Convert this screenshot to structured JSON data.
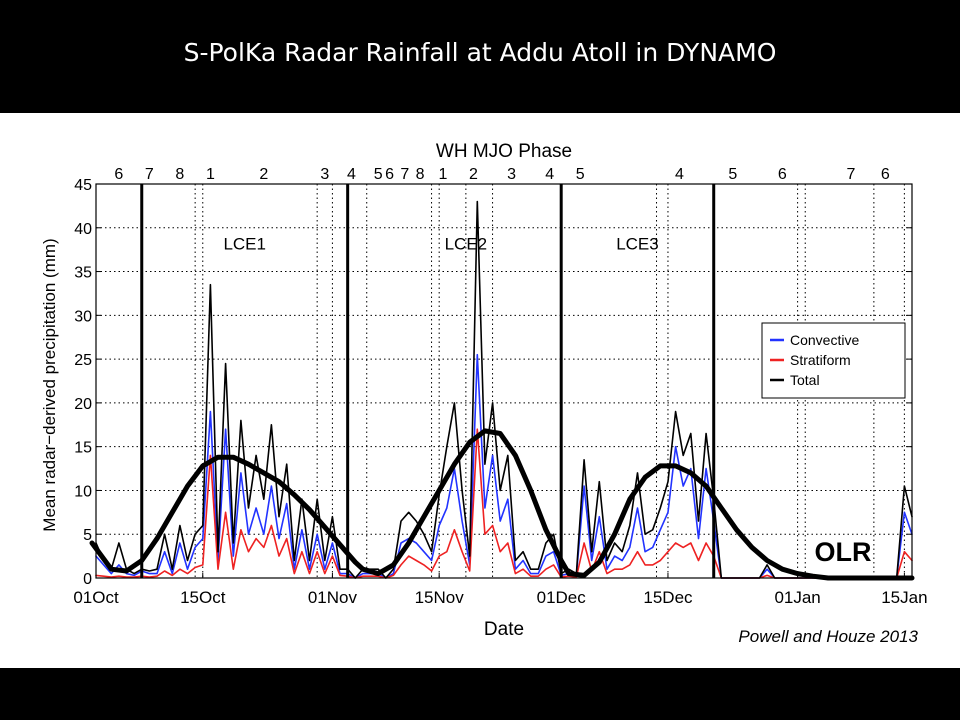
{
  "title": "S-PolKa Radar Rainfall at Addu Atoll in DYNAMO",
  "citation": "Powell and Houze 2013",
  "chart_data": {
    "type": "line",
    "top_axis_label": "WH MJO Phase",
    "xlabel": "Date",
    "ylabel": "Mean radar−derived precipitation (mm)",
    "x_unit": "days since 01Oct",
    "xlim": [
      0,
      107
    ],
    "ylim": [
      0,
      45
    ],
    "yticks": [
      0,
      5,
      10,
      15,
      20,
      25,
      30,
      35,
      40,
      45
    ],
    "xticks": [
      {
        "x": 0,
        "label": "01Oct"
      },
      {
        "x": 14,
        "label": "15Oct"
      },
      {
        "x": 31,
        "label": "01Nov"
      },
      {
        "x": 45,
        "label": "15Nov"
      },
      {
        "x": 61,
        "label": "01Dec"
      },
      {
        "x": 75,
        "label": "15Dec"
      },
      {
        "x": 92,
        "label": "01Jan"
      },
      {
        "x": 106,
        "label": "15Jan"
      }
    ],
    "mjo_phase_labels": [
      {
        "x": 3,
        "label": "6"
      },
      {
        "x": 7,
        "label": "7"
      },
      {
        "x": 11,
        "label": "8"
      },
      {
        "x": 15,
        "label": "1"
      },
      {
        "x": 22,
        "label": "2"
      },
      {
        "x": 30,
        "label": "3"
      },
      {
        "x": 33.5,
        "label": "4"
      },
      {
        "x": 37,
        "label": "5"
      },
      {
        "x": 38.5,
        "label": "6"
      },
      {
        "x": 40.5,
        "label": "7"
      },
      {
        "x": 42.5,
        "label": "8"
      },
      {
        "x": 45.5,
        "label": "1"
      },
      {
        "x": 49.5,
        "label": "2"
      },
      {
        "x": 54.5,
        "label": "3"
      },
      {
        "x": 59.5,
        "label": "4"
      },
      {
        "x": 63.5,
        "label": "5"
      },
      {
        "x": 76.5,
        "label": "4"
      },
      {
        "x": 83.5,
        "label": "5"
      },
      {
        "x": 90,
        "label": "6"
      },
      {
        "x": 99,
        "label": "7"
      },
      {
        "x": 103.5,
        "label": "6"
      }
    ],
    "lce_boundaries": [
      6,
      33,
      61,
      81
    ],
    "phase_boundaries_dotted": [
      13,
      29,
      35.5,
      44,
      48.5,
      52,
      73.5,
      93,
      102
    ],
    "lce_labels": [
      {
        "x": 19.5,
        "y": 37.5,
        "label": "LCE1"
      },
      {
        "x": 48.5,
        "y": 37.5,
        "label": "LCE2"
      },
      {
        "x": 71,
        "y": 37.5,
        "label": "LCE3"
      }
    ],
    "legend": [
      "Convective",
      "Stratiform",
      "Total"
    ],
    "legend_position": "right",
    "series": [
      {
        "name": "Convective",
        "color": "#2233ff",
        "x": [
          0,
          1,
          2,
          3,
          4,
          5,
          6,
          7,
          8,
          9,
          10,
          11,
          12,
          13,
          14,
          15,
          16,
          17,
          18,
          19,
          20,
          21,
          22,
          23,
          24,
          25,
          26,
          27,
          28,
          29,
          30,
          31,
          32,
          33,
          34,
          35,
          36,
          37,
          38,
          39,
          40,
          41,
          42,
          43,
          44,
          45,
          46,
          47,
          48,
          49,
          50,
          51,
          52,
          53,
          54,
          55,
          56,
          57,
          58,
          59,
          60,
          61,
          62,
          63,
          64,
          65,
          66,
          67,
          68,
          69,
          70,
          71,
          72,
          73,
          74,
          75,
          76,
          77,
          78,
          79,
          80,
          81,
          82,
          83,
          84,
          85,
          86,
          87,
          88,
          89,
          90,
          91,
          92,
          93,
          94,
          95,
          96,
          97,
          98,
          99,
          100,
          101,
          102,
          103,
          104,
          105,
          106,
          107
        ],
        "y": [
          2.5,
          1.5,
          0.5,
          1.5,
          0.5,
          0.3,
          0.8,
          0.5,
          0.5,
          3,
          0.5,
          4,
          1,
          3.5,
          4.5,
          19,
          2,
          17,
          2.5,
          12,
          5,
          8,
          5,
          10.5,
          4.5,
          8.5,
          1,
          5.5,
          1,
          5,
          1,
          4,
          0.5,
          0.5,
          0,
          0.5,
          0.5,
          0.5,
          0,
          0.5,
          4,
          4.5,
          4,
          3,
          2,
          6,
          8,
          12.5,
          6.5,
          1.5,
          25.5,
          8,
          14,
          6.5,
          9,
          1,
          2,
          0.5,
          0.5,
          2.5,
          3,
          0.3,
          0.5,
          0.3,
          10.5,
          2,
          7,
          1,
          2.5,
          2,
          3.5,
          8,
          3,
          3.5,
          5.5,
          7.5,
          15,
          10.5,
          12.5,
          4.5,
          12.5,
          6.5,
          0,
          0,
          0,
          0,
          0,
          0,
          1,
          0,
          0,
          0,
          0,
          0,
          0,
          0,
          0,
          0,
          0,
          0,
          0,
          0,
          0,
          0,
          0,
          0,
          7.5,
          5
        ]
      },
      {
        "name": "Stratiform",
        "color": "#ee2222",
        "x": [
          0,
          1,
          2,
          3,
          4,
          5,
          6,
          7,
          8,
          9,
          10,
          11,
          12,
          13,
          14,
          15,
          16,
          17,
          18,
          19,
          20,
          21,
          22,
          23,
          24,
          25,
          26,
          27,
          28,
          29,
          30,
          31,
          32,
          33,
          34,
          35,
          36,
          37,
          38,
          39,
          40,
          41,
          42,
          43,
          44,
          45,
          46,
          47,
          48,
          49,
          50,
          51,
          52,
          53,
          54,
          55,
          56,
          57,
          58,
          59,
          60,
          61,
          62,
          63,
          64,
          65,
          66,
          67,
          68,
          69,
          70,
          71,
          72,
          73,
          74,
          75,
          76,
          77,
          78,
          79,
          80,
          81,
          82,
          83,
          84,
          85,
          86,
          87,
          88,
          89,
          90,
          91,
          92,
          93,
          94,
          95,
          96,
          97,
          98,
          99,
          100,
          101,
          102,
          103,
          104,
          105,
          106,
          107
        ],
        "y": [
          0.3,
          0.2,
          0.1,
          0.2,
          0.1,
          0.1,
          0.2,
          0.1,
          0.2,
          0.8,
          0.3,
          1,
          0.5,
          1.2,
          1.5,
          14,
          1,
          7.5,
          1,
          5.5,
          3,
          4.5,
          3.5,
          6,
          2.5,
          4.5,
          0.5,
          3,
          0.5,
          3,
          0.5,
          2.5,
          0.3,
          0.2,
          0,
          0.2,
          0.2,
          0.2,
          0,
          0.3,
          1.5,
          2.5,
          2,
          1.5,
          0.8,
          2.5,
          3,
          5.5,
          3,
          0.8,
          17,
          5,
          6,
          3,
          4,
          0.5,
          1,
          0.2,
          0.2,
          1,
          1.5,
          0.1,
          0.2,
          0.1,
          4,
          0.8,
          3,
          0.5,
          1,
          1,
          1.5,
          3,
          1.5,
          1.5,
          2,
          3,
          4,
          3.5,
          4,
          2,
          4,
          2.5,
          0,
          0,
          0,
          0,
          0,
          0,
          0.3,
          0,
          0,
          0,
          0,
          0,
          0,
          0,
          0,
          0,
          0,
          0,
          0,
          0,
          0,
          0,
          0,
          0,
          3,
          2
        ]
      },
      {
        "name": "Total",
        "color": "#000000",
        "x": [
          0,
          1,
          2,
          3,
          4,
          5,
          6,
          7,
          8,
          9,
          10,
          11,
          12,
          13,
          14,
          15,
          16,
          17,
          18,
          19,
          20,
          21,
          22,
          23,
          24,
          25,
          26,
          27,
          28,
          29,
          30,
          31,
          32,
          33,
          34,
          35,
          36,
          37,
          38,
          39,
          40,
          41,
          42,
          43,
          44,
          45,
          46,
          47,
          48,
          49,
          50,
          51,
          52,
          53,
          54,
          55,
          56,
          57,
          58,
          59,
          60,
          61,
          62,
          63,
          64,
          65,
          66,
          67,
          68,
          69,
          70,
          71,
          72,
          73,
          74,
          75,
          76,
          77,
          78,
          79,
          80,
          81,
          82,
          83,
          84,
          85,
          86,
          87,
          88,
          89,
          90,
          91,
          92,
          93,
          94,
          95,
          96,
          97,
          98,
          99,
          100,
          101,
          102,
          103,
          104,
          105,
          106,
          107
        ],
        "y": [
          4,
          2,
          1,
          4,
          1,
          0.5,
          1,
          0.8,
          1,
          5,
          1,
          6,
          2,
          5,
          6,
          33.5,
          3,
          24.5,
          4,
          18,
          8,
          14,
          9,
          17.5,
          7,
          13,
          2,
          9,
          2,
          9,
          2,
          7,
          1,
          1,
          0,
          1,
          1,
          1,
          0,
          1,
          6.5,
          7.5,
          6.5,
          5,
          3,
          9.5,
          15,
          20,
          10,
          2.5,
          43,
          13,
          20,
          10,
          14,
          2,
          3,
          1,
          1,
          4,
          5,
          0.5,
          1,
          0.5,
          13.5,
          3,
          11,
          2,
          4,
          3,
          6,
          12,
          5,
          5.5,
          8,
          11,
          19,
          14,
          16.5,
          6.5,
          16.5,
          9,
          0,
          0,
          0,
          0,
          0,
          0,
          1.5,
          0,
          0,
          0,
          0,
          0,
          0,
          0,
          0,
          0,
          0,
          0,
          0,
          0,
          0,
          0,
          0,
          0,
          10.5,
          7
        ]
      },
      {
        "name": "OLR",
        "color": "#000000",
        "x": [
          -1,
          2,
          4,
          6,
          8,
          10,
          12,
          14,
          16,
          18,
          20,
          22,
          24,
          26,
          28,
          30,
          32,
          34,
          35,
          37,
          39,
          41,
          43,
          45,
          47,
          49,
          51,
          53,
          55,
          57,
          59,
          61,
          62,
          64,
          66,
          68,
          70,
          72,
          74,
          76,
          78,
          80,
          82,
          84,
          86,
          88,
          90,
          92,
          94,
          96,
          98,
          100,
          102,
          104,
          106,
          107
        ],
        "y": [
          4,
          1,
          0.8,
          2,
          4.5,
          7.5,
          10.5,
          12.8,
          13.8,
          13.8,
          13,
          12,
          11,
          9.5,
          7.8,
          5.8,
          3.8,
          1.8,
          1,
          0.5,
          1.5,
          4,
          7,
          10,
          13,
          15.5,
          16.8,
          16.5,
          14,
          10,
          5.5,
          2,
          0.5,
          0.3,
          1.8,
          5,
          9,
          11.5,
          12.8,
          12.8,
          12,
          10.5,
          8,
          5.5,
          3.5,
          2,
          1,
          0.5,
          0.2,
          0,
          0,
          0,
          0,
          0,
          0,
          0
        ]
      }
    ],
    "annotation": "OLR"
  }
}
